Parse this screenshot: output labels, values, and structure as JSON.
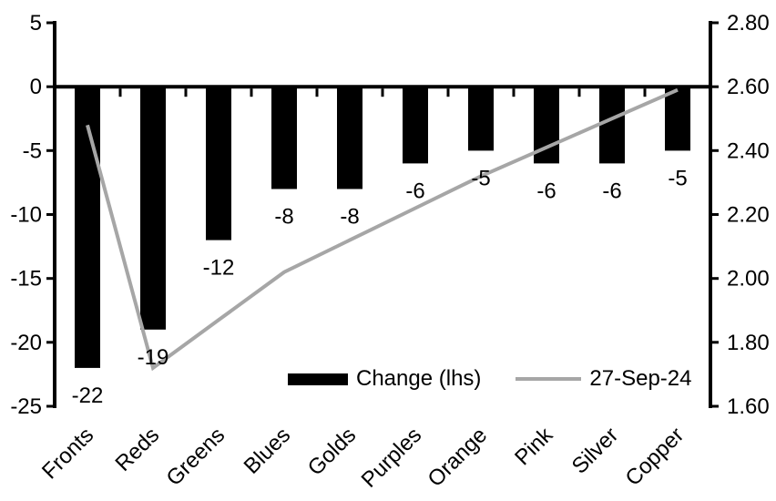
{
  "chart_data": {
    "type": "bar",
    "subtype": "dual-axis bar+line combo",
    "categories": [
      "Fronts",
      "Reds",
      "Greens",
      "Blues",
      "Golds",
      "Purples",
      "Orange",
      "Pink",
      "Silver",
      "Copper"
    ],
    "series": [
      {
        "name": "Change (lhs)",
        "type": "bar",
        "axis": "left",
        "values": [
          -22,
          -19,
          -12,
          -8,
          -8,
          -6,
          -5,
          -6,
          -6,
          -5
        ]
      },
      {
        "name": "27-Sep-24",
        "type": "line",
        "axis": "right",
        "values": [
          2.48,
          1.72,
          1.87,
          2.02,
          2.12,
          2.22,
          2.32,
          2.41,
          2.5,
          2.59
        ]
      }
    ],
    "bar_data_labels": [
      "-22",
      "-19",
      "-12",
      "-8",
      "-8",
      "-6",
      "-5",
      "-6",
      "-6",
      "-5"
    ],
    "left_axis": {
      "min": -25,
      "max": 5,
      "step": 5,
      "tick_labels": [
        "5",
        "0",
        "-5",
        "-10",
        "-15",
        "-20",
        "-25"
      ]
    },
    "right_axis": {
      "min": 1.6,
      "max": 2.8,
      "step": 0.2,
      "tick_labels": [
        "2.80",
        "2.60",
        "2.40",
        "2.20",
        "2.00",
        "1.80",
        "1.60"
      ]
    },
    "grid": false,
    "legend_position": "bottom-inside",
    "colors": {
      "bar": "#000000",
      "line": "#a6a6a6",
      "axis": "#000000",
      "text": "#000000",
      "background": "#ffffff"
    }
  }
}
